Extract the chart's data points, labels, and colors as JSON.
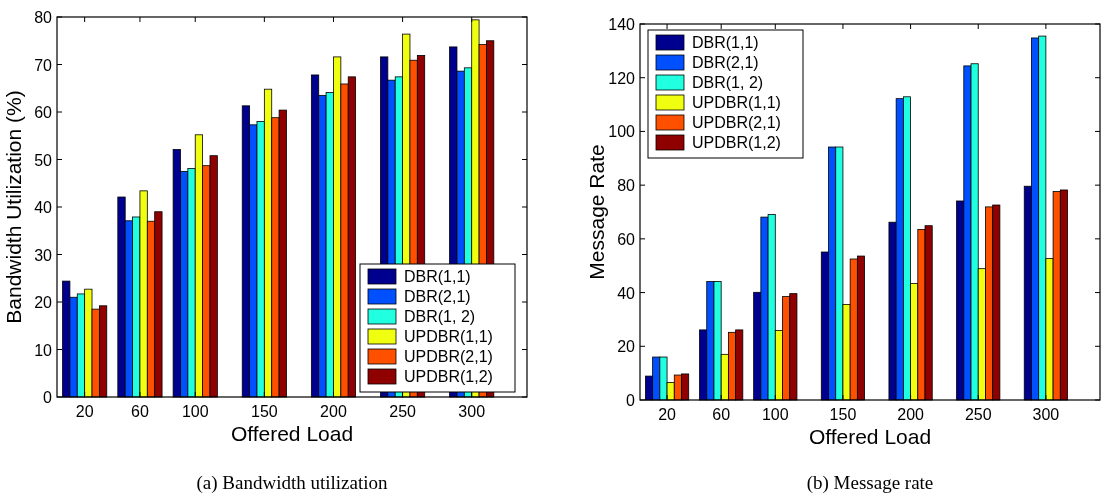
{
  "chart_data": [
    {
      "type": "bar",
      "xlabel": "Offered Load",
      "ylabel": "Bandwidth Utilization (%)",
      "x": [
        20,
        60,
        100,
        150,
        200,
        250,
        300
      ],
      "xlim": [
        0,
        340
      ],
      "xticks": [
        20,
        60,
        100,
        150,
        200,
        250,
        300
      ],
      "ylim": [
        0,
        80
      ],
      "yticks": [
        0,
        10,
        20,
        30,
        40,
        50,
        60,
        70,
        80
      ],
      "legend": "bottom right",
      "grid": false,
      "annotations": [
        "(a) Bandwidth utilization"
      ],
      "series": [
        {
          "name": "DBR(1,1)",
          "color": "#00008f",
          "values": [
            24.4,
            42.1,
            52.1,
            61.3,
            67.8,
            71.6,
            73.7
          ]
        },
        {
          "name": "DBR(2,1)",
          "color": "#0050ff",
          "values": [
            21.0,
            37.1,
            47.5,
            57.3,
            63.5,
            66.7,
            68.6
          ]
        },
        {
          "name": "DBR(1, 2)",
          "color": "#20ffdf",
          "values": [
            21.7,
            37.9,
            48.1,
            58.0,
            64.1,
            67.4,
            69.3
          ]
        },
        {
          "name": "UPDBR(1,1)",
          "color": "#f0ff10",
          "values": [
            22.7,
            43.4,
            55.2,
            64.8,
            71.6,
            76.4,
            79.4
          ]
        },
        {
          "name": "UPDBR(2,1)",
          "color": "#ff5000",
          "values": [
            18.5,
            37.0,
            48.7,
            58.8,
            65.9,
            70.9,
            74.2
          ]
        },
        {
          "name": "UPDBR(1,2)",
          "color": "#8f0000",
          "values": [
            19.2,
            39.0,
            50.8,
            60.4,
            67.4,
            71.9,
            75.0
          ]
        }
      ]
    },
    {
      "type": "bar",
      "xlabel": "Offered Load",
      "ylabel": "Message Rate",
      "x": [
        20,
        60,
        100,
        150,
        200,
        250,
        300
      ],
      "xlim": [
        0,
        340
      ],
      "xticks": [
        20,
        60,
        100,
        150,
        200,
        250,
        300
      ],
      "ylim": [
        0,
        140
      ],
      "yticks": [
        0,
        20,
        40,
        60,
        80,
        100,
        120,
        140
      ],
      "legend": "top left",
      "grid": false,
      "annotations": [
        "(b) Message rate"
      ],
      "series": [
        {
          "name": "DBR(1,1)",
          "color": "#00008f",
          "values": [
            8.9,
            26.1,
            40.1,
            55.1,
            66.2,
            74.1,
            79.6
          ]
        },
        {
          "name": "DBR(2,1)",
          "color": "#0050ff",
          "values": [
            16.0,
            44.1,
            68.1,
            94.2,
            112.2,
            124.4,
            134.8
          ]
        },
        {
          "name": "DBR(1, 2)",
          "color": "#20ffdf",
          "values": [
            16.0,
            44.1,
            69.1,
            94.2,
            112.9,
            125.2,
            135.5
          ]
        },
        {
          "name": "UPDBR(1,1)",
          "color": "#f0ff10",
          "values": [
            6.5,
            17.0,
            25.9,
            35.6,
            43.4,
            48.9,
            52.7
          ]
        },
        {
          "name": "UPDBR(2,1)",
          "color": "#ff5000",
          "values": [
            9.3,
            25.2,
            38.5,
            52.5,
            63.5,
            71.9,
            77.6
          ]
        },
        {
          "name": "UPDBR(1,2)",
          "color": "#8f0000",
          "values": [
            9.7,
            26.1,
            39.6,
            53.6,
            64.9,
            72.6,
            78.2
          ]
        }
      ]
    }
  ]
}
